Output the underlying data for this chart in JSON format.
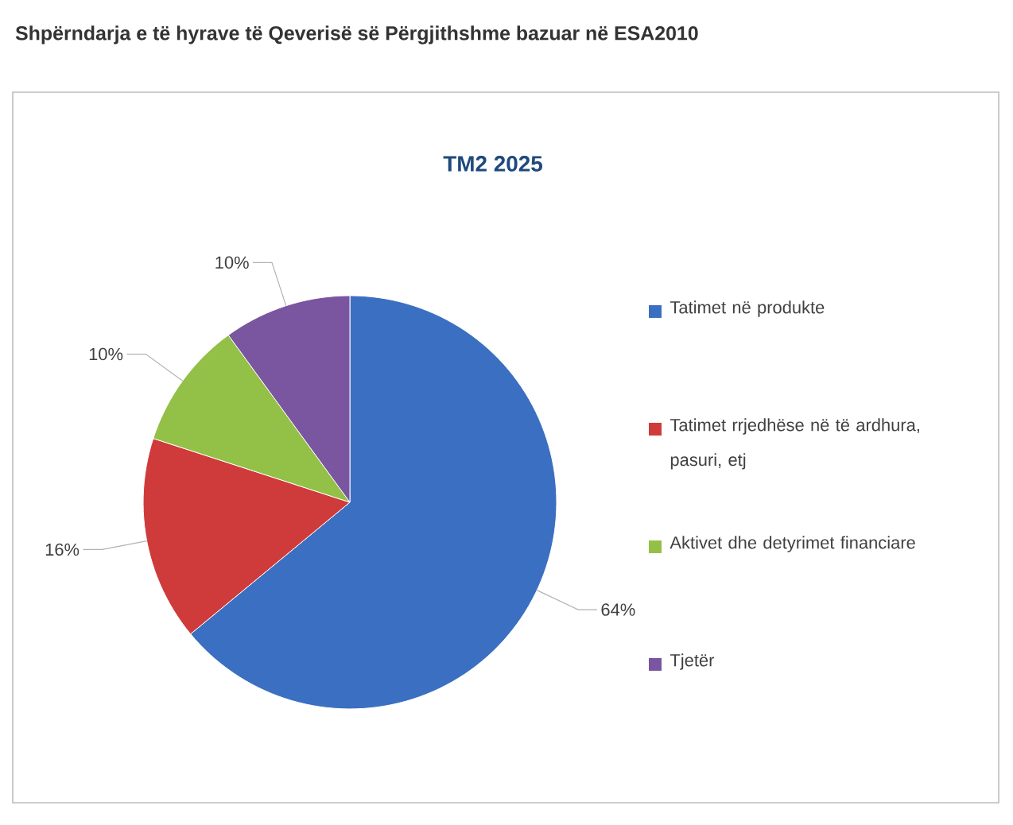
{
  "chart_data": {
    "type": "pie",
    "title": "Shpërndarja e të hyrave të Qeverisë së Përgjithshme bazuar në ESA2010",
    "subtitle": "TM2 2025",
    "categories": [
      "Tatimet në produkte",
      "Tatimet rrjedhëse në të ardhura, pasuri, etj",
      "Aktivet dhe detyrimet financiare",
      "Tjetër"
    ],
    "values": [
      64,
      16,
      10,
      10
    ],
    "value_labels": [
      "64%",
      "16%",
      "10%",
      "10%"
    ],
    "colors": [
      "#3b6fc1",
      "#cf3b3a",
      "#93c047",
      "#7a55a0"
    ],
    "legend": "right"
  }
}
